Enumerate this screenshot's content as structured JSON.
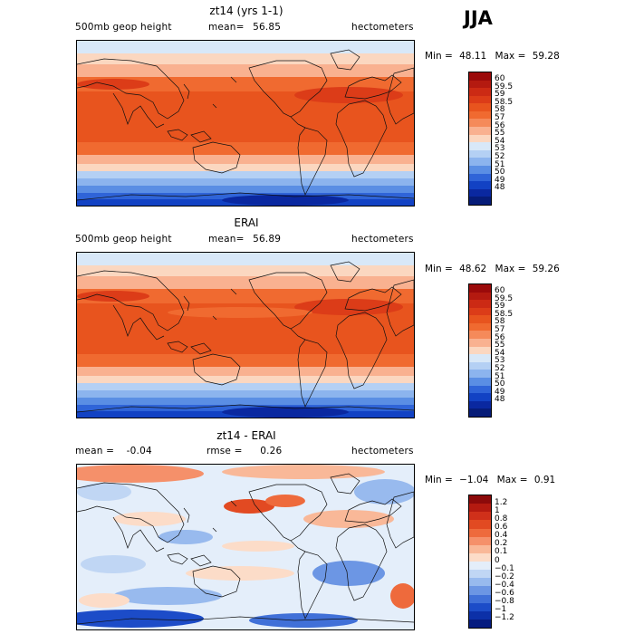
{
  "season": "JJA",
  "chart_data": [
    {
      "type": "heatmap",
      "title": "zt14 (yrs 1-1)",
      "variable": "500mb geop height",
      "mean_label": "mean=",
      "mean": "56.85",
      "units": "hectometers",
      "min_label": "Min =",
      "min": "48.11",
      "max_label": "Max =",
      "max": "59.28",
      "colorbar_levels": [
        "60",
        "59.5",
        "59",
        "58.5",
        "58",
        "57",
        "56",
        "55",
        "54",
        "53",
        "52",
        "51",
        "50",
        "49",
        "48"
      ],
      "colorbar_colors": [
        "#9b0a0a",
        "#b41a10",
        "#cc2a14",
        "#dc3c18",
        "#e8541e",
        "#f06a30",
        "#f58a5a",
        "#f9b190",
        "#fbd7c0",
        "#d8e8f8",
        "#b4d0f4",
        "#8cb4ee",
        "#5a8ee4",
        "#2f64d8",
        "#1242c4",
        "#0a28a0",
        "#061c78"
      ]
    },
    {
      "type": "heatmap",
      "title": "ERAI",
      "variable": "500mb geop height",
      "mean_label": "mean=",
      "mean": "56.89",
      "units": "hectometers",
      "min_label": "Min =",
      "min": "48.62",
      "max_label": "Max =",
      "max": "59.26",
      "colorbar_levels": [
        "60",
        "59.5",
        "59",
        "58.5",
        "58",
        "57",
        "56",
        "55",
        "54",
        "53",
        "52",
        "51",
        "50",
        "49",
        "48"
      ],
      "colorbar_colors": [
        "#9b0a0a",
        "#b41a10",
        "#cc2a14",
        "#dc3c18",
        "#e8541e",
        "#f06a30",
        "#f58a5a",
        "#f9b190",
        "#fbd7c0",
        "#d8e8f8",
        "#b4d0f4",
        "#8cb4ee",
        "#5a8ee4",
        "#2f64d8",
        "#1242c4",
        "#0a28a0",
        "#061c78"
      ]
    },
    {
      "type": "heatmap",
      "title": "zt14 - ERAI",
      "mean_label": "mean =",
      "mean": "-0.04",
      "rmse_label": "rmse =",
      "rmse": "0.26",
      "units": "hectometers",
      "min_label": "Min =",
      "min": "−1.04",
      "max_label": "Max =",
      "max": "0.91",
      "colorbar_levels": [
        "1.2",
        "1",
        "0.8",
        "0.6",
        "0.4",
        "0.2",
        "0.1",
        "0",
        "−0.1",
        "−0.2",
        "−0.4",
        "−0.6",
        "−0.8",
        "−1",
        "−1.2"
      ],
      "colorbar_colors": [
        "#8c0a0a",
        "#b41a10",
        "#d0301a",
        "#e24a22",
        "#ee6a3c",
        "#f5906a",
        "#f9b898",
        "#fcdcc8",
        "#e4eefa",
        "#c0d6f4",
        "#98baee",
        "#6c96e4",
        "#4070d8",
        "#1c4cc8",
        "#0c30a8",
        "#061c80"
      ]
    }
  ]
}
